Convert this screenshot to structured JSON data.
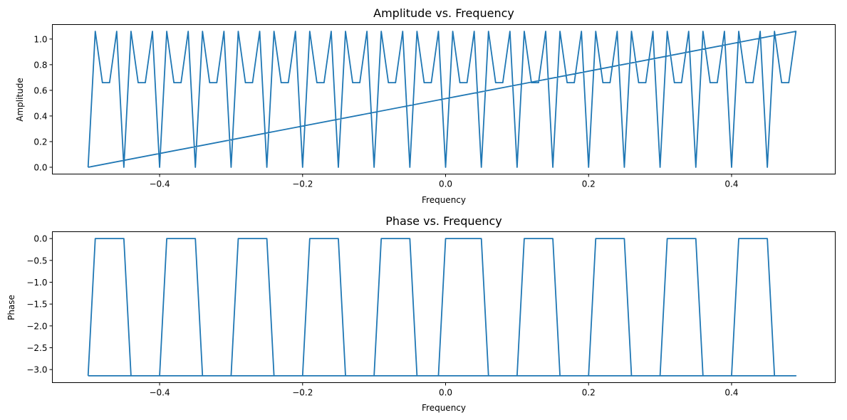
{
  "colors": {
    "line": "#1f77b4",
    "axes": "#000000",
    "background": "#ffffff"
  },
  "chart_data": [
    {
      "type": "line",
      "title": "Amplitude vs. Frequency",
      "xlabel": "Frequency",
      "ylabel": "Amplitude",
      "xlim": [
        -0.55,
        0.545
      ],
      "ylim": [
        -0.053,
        1.113
      ],
      "xticks": [
        -0.4,
        -0.2,
        0.0,
        0.2,
        0.4
      ],
      "xtick_labels": [
        "−0.4",
        "−0.2",
        "0.0",
        "0.2",
        "0.4"
      ],
      "yticks": [
        0.0,
        0.2,
        0.4,
        0.6,
        0.8,
        1.0
      ],
      "ytick_labels": [
        "0.0",
        "0.2",
        "0.4",
        "0.6",
        "0.8",
        "1.0"
      ],
      "grid": false,
      "series": [
        {
          "x": [
            -0.5,
            -0.49,
            -0.48,
            -0.47,
            -0.46,
            -0.45,
            -0.44,
            -0.43,
            -0.42,
            -0.41,
            -0.4,
            -0.39,
            -0.38,
            -0.37,
            -0.36,
            -0.35,
            -0.34,
            -0.33,
            -0.32,
            -0.31,
            -0.3,
            -0.29,
            -0.28,
            -0.27,
            -0.26,
            -0.25,
            -0.24,
            -0.23,
            -0.22,
            -0.21,
            -0.2,
            -0.19,
            -0.18,
            -0.17,
            -0.16,
            -0.15,
            -0.14,
            -0.13,
            -0.12,
            -0.11,
            -0.1,
            -0.09,
            -0.08,
            -0.07,
            -0.06,
            -0.05,
            -0.04,
            -0.03,
            -0.02,
            -0.01,
            0.0,
            0.01,
            0.02,
            0.03,
            0.04,
            0.05,
            0.06,
            0.07,
            0.08,
            0.09,
            0.1,
            0.11,
            0.12,
            0.13,
            0.14,
            0.15,
            0.16,
            0.17,
            0.18,
            0.19,
            0.2,
            0.21,
            0.22,
            0.23,
            0.24,
            0.25,
            0.26,
            0.27,
            0.28,
            0.29,
            0.3,
            0.31,
            0.32,
            0.33,
            0.34,
            0.35,
            0.36,
            0.37,
            0.38,
            0.39,
            0.4,
            0.41,
            0.42,
            0.43,
            0.44,
            0.45,
            0.46,
            0.47,
            0.48,
            0.49,
            -0.5
          ],
          "y": [
            0.0,
            1.06,
            0.66,
            0.66,
            1.06,
            0.0,
            1.06,
            0.66,
            0.66,
            1.06,
            0.0,
            1.06,
            0.66,
            0.66,
            1.06,
            0.0,
            1.06,
            0.66,
            0.66,
            1.06,
            0.0,
            1.06,
            0.66,
            0.66,
            1.06,
            0.0,
            1.06,
            0.66,
            0.66,
            1.06,
            0.0,
            1.06,
            0.66,
            0.66,
            1.06,
            0.0,
            1.06,
            0.66,
            0.66,
            1.06,
            0.0,
            1.06,
            0.66,
            0.66,
            1.06,
            0.0,
            1.06,
            0.66,
            0.66,
            1.06,
            0.0,
            1.06,
            0.66,
            0.66,
            1.06,
            0.0,
            1.06,
            0.66,
            0.66,
            1.06,
            0.0,
            1.06,
            0.66,
            0.66,
            1.06,
            0.0,
            1.06,
            0.66,
            0.66,
            1.06,
            0.0,
            1.06,
            0.66,
            0.66,
            1.06,
            0.0,
            1.06,
            0.66,
            0.66,
            1.06,
            0.0,
            1.06,
            0.66,
            0.66,
            1.06,
            0.0,
            1.06,
            0.66,
            0.66,
            1.06,
            0.0,
            1.06,
            0.66,
            0.66,
            1.06,
            0.0,
            1.06,
            0.66,
            0.66,
            1.06,
            0.0
          ]
        }
      ]
    },
    {
      "type": "line",
      "title": "Phase vs. Frequency",
      "xlabel": "Frequency",
      "ylabel": "Phase",
      "xlim": [
        -0.55,
        0.545
      ],
      "ylim": [
        -3.299,
        0.157
      ],
      "xticks": [
        -0.4,
        -0.2,
        0.0,
        0.2,
        0.4
      ],
      "xtick_labels": [
        "−0.4",
        "−0.2",
        "0.0",
        "0.2",
        "0.4"
      ],
      "yticks": [
        0.0,
        -0.5,
        -1.0,
        -1.5,
        -2.0,
        -2.5,
        -3.0
      ],
      "ytick_labels": [
        "0.0",
        "−0.5",
        "−1.0",
        "−1.5",
        "−2.0",
        "−2.5",
        "−3.0"
      ],
      "grid": false,
      "series": [
        {
          "x": [
            -0.5,
            -0.49,
            -0.48,
            -0.47,
            -0.46,
            -0.45,
            -0.44,
            -0.43,
            -0.42,
            -0.41,
            -0.4,
            -0.39,
            -0.38,
            -0.37,
            -0.36,
            -0.35,
            -0.34,
            -0.33,
            -0.32,
            -0.31,
            -0.3,
            -0.29,
            -0.28,
            -0.27,
            -0.26,
            -0.25,
            -0.24,
            -0.23,
            -0.22,
            -0.21,
            -0.2,
            -0.19,
            -0.18,
            -0.17,
            -0.16,
            -0.15,
            -0.14,
            -0.13,
            -0.12,
            -0.11,
            -0.1,
            -0.09,
            -0.08,
            -0.07,
            -0.06,
            -0.05,
            -0.04,
            -0.03,
            -0.02,
            -0.01,
            0.0,
            0.01,
            0.02,
            0.03,
            0.04,
            0.05,
            0.06,
            0.07,
            0.08,
            0.09,
            0.1,
            0.11,
            0.12,
            0.13,
            0.14,
            0.15,
            0.16,
            0.17,
            0.18,
            0.19,
            0.2,
            0.21,
            0.22,
            0.23,
            0.24,
            0.25,
            0.26,
            0.27,
            0.28,
            0.29,
            0.3,
            0.31,
            0.32,
            0.33,
            0.34,
            0.35,
            0.36,
            0.37,
            0.38,
            0.39,
            0.4,
            0.41,
            0.42,
            0.43,
            0.44,
            0.45,
            0.46,
            0.47,
            0.48,
            0.49,
            -0.5
          ],
          "y": [
            -3.1416,
            0.0,
            0.0,
            0.0,
            0.0,
            0.0,
            -3.1416,
            -3.1416,
            -3.1416,
            -3.1416,
            -3.1416,
            0.0,
            0.0,
            0.0,
            0.0,
            0.0,
            -3.1416,
            -3.1416,
            -3.1416,
            -3.1416,
            -3.1416,
            0.0,
            0.0,
            0.0,
            0.0,
            0.0,
            -3.1416,
            -3.1416,
            -3.1416,
            -3.1416,
            -3.1416,
            0.0,
            0.0,
            0.0,
            0.0,
            0.0,
            -3.1416,
            -3.1416,
            -3.1416,
            -3.1416,
            -3.1416,
            0.0,
            0.0,
            0.0,
            0.0,
            0.0,
            -3.1416,
            -3.1416,
            -3.1416,
            -3.1416,
            0.0,
            0.0,
            0.0,
            0.0,
            0.0,
            0.0,
            -3.1416,
            -3.1416,
            -3.1416,
            -3.1416,
            -3.1416,
            0.0,
            0.0,
            0.0,
            0.0,
            0.0,
            -3.1416,
            -3.1416,
            -3.1416,
            -3.1416,
            -3.1416,
            0.0,
            0.0,
            0.0,
            0.0,
            0.0,
            -3.1416,
            -3.1416,
            -3.1416,
            -3.1416,
            -3.1416,
            0.0,
            0.0,
            0.0,
            0.0,
            0.0,
            -3.1416,
            -3.1416,
            -3.1416,
            -3.1416,
            -3.1416,
            0.0,
            0.0,
            0.0,
            0.0,
            0.0,
            -3.1416,
            -3.1416,
            -3.1416,
            -3.1416,
            -3.1416
          ]
        }
      ]
    }
  ]
}
